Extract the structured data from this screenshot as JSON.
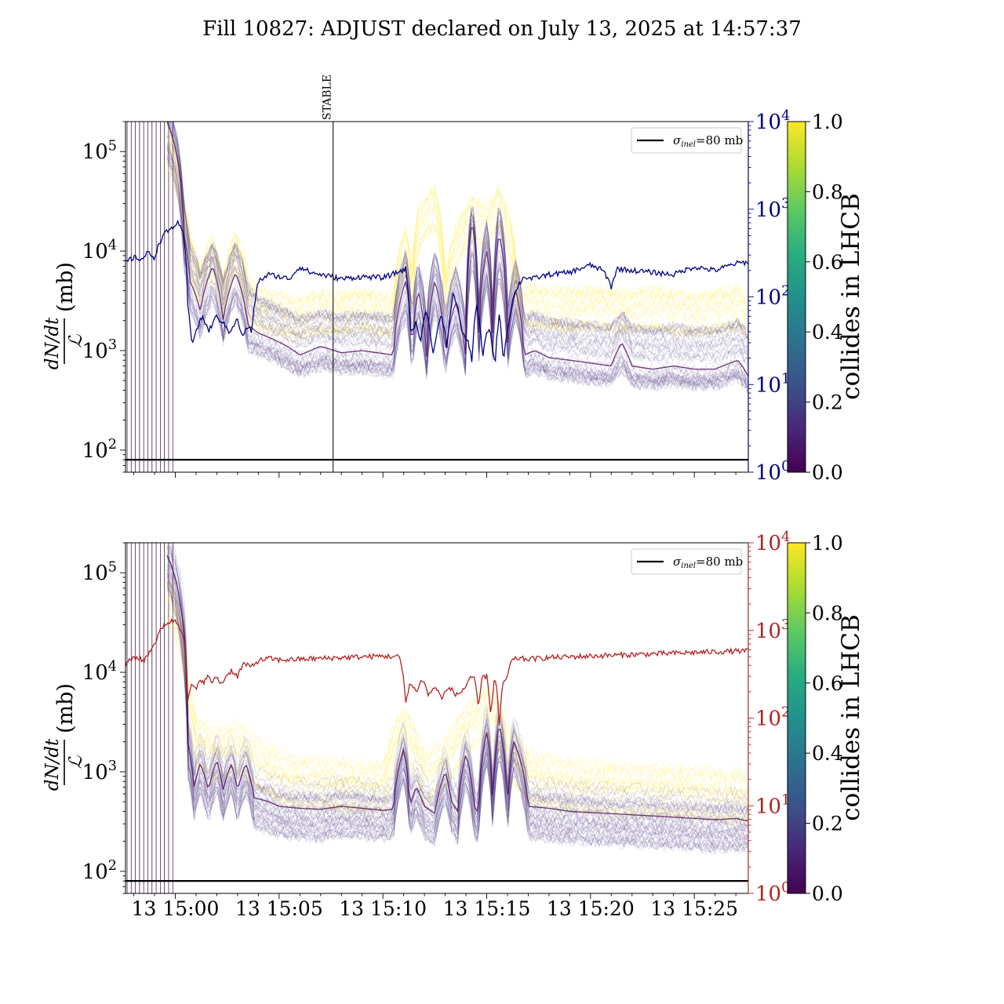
{
  "title": "Fill 10827: ADJUST declared on July 13, 2025 at 14:57:37",
  "colors": {
    "top_right_axis": "#00007f",
    "bottom_right_axis": "#b22222",
    "cmap_low": "#440154",
    "cmap_high": "#fde725",
    "line_black": "#000000"
  },
  "chart_data": [
    {
      "type": "line",
      "panel": "top",
      "ylabel_left": "dN/dt / L (mb)",
      "ylabel_main": "dN/dt",
      "ylabel_den": "ℒ",
      "ylabel_unit": "(mb)",
      "yscale_left": "log",
      "ylim_left": [
        60,
        200000
      ],
      "yticks_left": [
        {
          "v": 100,
          "e": "2"
        },
        {
          "v": 1000,
          "e": "3"
        },
        {
          "v": 10000,
          "e": "4"
        },
        {
          "v": 100000,
          "e": "5"
        }
      ],
      "yscale_right": "log",
      "ylim_right": [
        1,
        10000
      ],
      "yticks_right": [
        {
          "v": 1,
          "e": "0"
        },
        {
          "v": 10,
          "e": "1"
        },
        {
          "v": 100,
          "e": "2"
        },
        {
          "v": 1000,
          "e": "3"
        },
        {
          "v": 10000,
          "e": "4"
        }
      ],
      "xlim_minutes": [
        -2.4,
        27.6
      ],
      "show_xticklabels": false,
      "legend": {
        "label_sym": "σ",
        "label_sub": "inel",
        "label_rest": "=80 mb",
        "placement": "upper right"
      },
      "reference_line_mb": 80,
      "annotation": {
        "label": "STABLE",
        "x_minutes": 7.6
      },
      "series_left": {
        "name": "per-bunch dN/dt / L",
        "x_minutes": [
          -0.4,
          0.4,
          0.7,
          1.2,
          1.8,
          2.3,
          2.9,
          3.5,
          4,
          4.7,
          5.4,
          6,
          7,
          8,
          9,
          10.5,
          11.1,
          11.4,
          11.7,
          12.1,
          12.5,
          13,
          13.5,
          14,
          14.3,
          14.6,
          15,
          15.3,
          15.6,
          16,
          16.4,
          16.8,
          17.3,
          18,
          19,
          20,
          21,
          21.5,
          22,
          23,
          24,
          25,
          26,
          27.1,
          27.6
        ],
        "median": [
          200000,
          15000,
          5000,
          2500,
          7000,
          2000,
          6000,
          1800,
          1500,
          1300,
          1100,
          900,
          1100,
          950,
          1000,
          900,
          5000,
          900,
          4000,
          800,
          5000,
          900,
          3000,
          800,
          20000,
          900,
          10000,
          900,
          15000,
          1000,
          4000,
          900,
          1000,
          850,
          800,
          750,
          700,
          1200,
          700,
          650,
          700,
          650,
          650,
          800,
          550
        ],
        "lower_band": [
          80000,
          7000,
          2500,
          1300,
          3000,
          1100,
          3000,
          1000,
          900,
          800,
          650,
          550,
          650,
          600,
          600,
          550,
          2000,
          550,
          1800,
          500,
          2200,
          550,
          1500,
          500,
          7000,
          550,
          4000,
          550,
          5000,
          600,
          2000,
          550,
          600,
          520,
          500,
          470,
          450,
          600,
          450,
          420,
          450,
          420,
          420,
          500,
          380
        ],
        "upper_band": [
          300000,
          30000,
          12000,
          6000,
          12000,
          5000,
          12000,
          4500,
          3500,
          3000,
          2500,
          2200,
          2500,
          2300,
          2400,
          2200,
          10000,
          2200,
          8000,
          2000,
          10000,
          2200,
          7000,
          2000,
          30000,
          2200,
          20000,
          2200,
          30000,
          2500,
          8000,
          2200,
          2400,
          2100,
          2000,
          1900,
          1800,
          2500,
          1800,
          1700,
          1800,
          1700,
          1700,
          2000,
          1500
        ]
      },
      "series_colliding": {
        "name": "colliding bunches",
        "x_minutes": [
          -0.4,
          0.4,
          0.7,
          1.2,
          1.8,
          2.3,
          2.9,
          3.5,
          4,
          4.7,
          5.4,
          6,
          7,
          8,
          9,
          10.5,
          11.1,
          11.4,
          11.7,
          12.5,
          13,
          14.3,
          15,
          15.6,
          16.5,
          17,
          18,
          19,
          20,
          21,
          22,
          23,
          24,
          25,
          26,
          27.1,
          27.6
        ],
        "median": [
          100000,
          20000,
          8000,
          4000,
          8000,
          3000,
          9000,
          3000,
          2500,
          2200,
          2000,
          1900,
          2200,
          2100,
          2300,
          2000,
          10000,
          3000,
          15000,
          25000,
          3000,
          20000,
          15000,
          25000,
          3000,
          2500,
          2400,
          2300,
          2400,
          2300,
          2200,
          2400,
          2200,
          2100,
          2200,
          2500,
          1800
        ]
      },
      "series_right": {
        "name": "right-axis trace",
        "color": "#00007f",
        "x_minutes": [
          -2.4,
          -2,
          -1.6,
          -1.3,
          -1,
          -0.6,
          -0.2,
          0.1,
          0.4,
          0.6,
          0.7,
          0.8,
          1,
          1.3,
          1.6,
          2,
          2.3,
          2.6,
          3,
          3.2,
          3.5,
          3.7,
          4,
          4.5,
          5,
          5.5,
          6,
          6.5,
          7,
          8,
          9,
          10,
          10.7,
          11.1,
          11.3,
          11.6,
          11.8,
          12.1,
          12.4,
          12.8,
          13.1,
          13.4,
          13.8,
          14.1,
          14.3,
          14.5,
          14.8,
          15.1,
          15.4,
          15.6,
          15.8,
          16,
          16.4,
          16.8,
          17.2,
          18,
          19,
          20,
          20.6,
          21,
          21.3,
          22,
          23,
          24,
          25,
          26,
          27,
          27.6
        ],
        "values": [
          250,
          280,
          270,
          320,
          280,
          500,
          600,
          700,
          500,
          80,
          50,
          30,
          40,
          60,
          40,
          60,
          50,
          40,
          55,
          35,
          45,
          40,
          150,
          180,
          170,
          160,
          220,
          190,
          180,
          160,
          170,
          165,
          190,
          210,
          40,
          50,
          30,
          70,
          20,
          60,
          25,
          110,
          40,
          30,
          18,
          80,
          20,
          45,
          15,
          60,
          18,
          40,
          120,
          170,
          160,
          180,
          190,
          230,
          200,
          130,
          210,
          200,
          190,
          180,
          220,
          200,
          240,
          250
        ]
      }
    },
    {
      "type": "line",
      "panel": "bottom",
      "ylabel_left": "dN/dt / L (mb)",
      "ylabel_main": "dN/dt",
      "ylabel_den": "ℒ",
      "ylabel_unit": "(mb)",
      "yscale_left": "log",
      "ylim_left": [
        60,
        200000
      ],
      "yticks_left": [
        {
          "v": 100,
          "e": "2"
        },
        {
          "v": 1000,
          "e": "3"
        },
        {
          "v": 10000,
          "e": "4"
        },
        {
          "v": 100000,
          "e": "5"
        }
      ],
      "yscale_right": "log",
      "ylim_right": [
        1,
        10000
      ],
      "yticks_right": [
        {
          "v": 1,
          "e": "0"
        },
        {
          "v": 10,
          "e": "1"
        },
        {
          "v": 100,
          "e": "2"
        },
        {
          "v": 1000,
          "e": "3"
        },
        {
          "v": 10000,
          "e": "4"
        }
      ],
      "xlim_minutes": [
        -2.4,
        27.6
      ],
      "xticks": [
        {
          "v": 0,
          "label": "13 15:00"
        },
        {
          "v": 5,
          "label": "13 15:05"
        },
        {
          "v": 10,
          "label": "13 15:10"
        },
        {
          "v": 15,
          "label": "13 15:15"
        },
        {
          "v": 20,
          "label": "13 15:20"
        },
        {
          "v": 25,
          "label": "13 15:25"
        }
      ],
      "legend": {
        "label_sym": "σ",
        "label_sub": "inel",
        "label_rest": "=80 mb",
        "placement": "upper right"
      },
      "reference_line_mb": 80,
      "series_left": {
        "name": "per-bunch dN/dt / L",
        "x_minutes": [
          -2.4,
          -0.4,
          0.3,
          0.6,
          0.9,
          1.2,
          1.6,
          2,
          2.3,
          2.7,
          3,
          3.4,
          3.8,
          4.5,
          5,
          6,
          7,
          8,
          9,
          10,
          10.5,
          11,
          11.3,
          11.6,
          12,
          12.5,
          13,
          13.3,
          13.6,
          14,
          14.4,
          14.6,
          15,
          15.3,
          15.6,
          16,
          16.3,
          17,
          18,
          19,
          20,
          21,
          22,
          23,
          24,
          25,
          26,
          27,
          27.6
        ],
        "median": [
          200000,
          150000,
          40000,
          2000,
          700,
          1200,
          650,
          1300,
          650,
          1200,
          650,
          1200,
          550,
          500,
          450,
          430,
          420,
          450,
          430,
          410,
          420,
          1700,
          450,
          700,
          450,
          380,
          1000,
          500,
          400,
          1500,
          450,
          380,
          2500,
          450,
          3000,
          450,
          2000,
          450,
          430,
          400,
          390,
          380,
          370,
          360,
          350,
          340,
          330,
          340,
          320
        ],
        "lower_band": [
          100000,
          70000,
          15000,
          900,
          350,
          600,
          320,
          650,
          320,
          600,
          320,
          600,
          280,
          250,
          230,
          220,
          210,
          230,
          220,
          210,
          220,
          800,
          220,
          350,
          220,
          190,
          500,
          250,
          200,
          700,
          220,
          190,
          1200,
          220,
          1400,
          220,
          1000,
          220,
          210,
          200,
          195,
          190,
          185,
          180,
          175,
          170,
          165,
          170,
          160
        ],
        "upper_band": [
          300000,
          300000,
          90000,
          4500,
          1500,
          2500,
          1400,
          2700,
          1400,
          2500,
          1400,
          2500,
          1100,
          1000,
          900,
          850,
          850,
          900,
          860,
          820,
          840,
          3500,
          900,
          1400,
          900,
          760,
          2000,
          1000,
          800,
          3000,
          900,
          760,
          5000,
          900,
          6000,
          900,
          4000,
          900,
          860,
          800,
          780,
          760,
          740,
          720,
          700,
          680,
          660,
          680,
          640
        ]
      },
      "series_colliding": {
        "name": "colliding bunches",
        "x_minutes": [
          -0.4,
          0.6,
          1,
          2,
          3,
          4,
          5,
          6,
          8,
          10,
          11,
          12,
          13,
          14,
          15,
          15.6,
          16,
          17,
          18,
          20,
          22,
          24,
          26,
          27.6
        ],
        "median": [
          60000,
          5000,
          2000,
          1500,
          1800,
          1200,
          900,
          800,
          750,
          700,
          2500,
          900,
          1200,
          2500,
          4000,
          3000,
          1500,
          900,
          800,
          700,
          680,
          650,
          600,
          550
        ]
      },
      "series_right": {
        "name": "right-axis trace",
        "color": "#b22222",
        "x_minutes": [
          -2.4,
          -2,
          -1.5,
          -1,
          -0.5,
          0,
          0.4,
          0.6,
          0.8,
          1,
          1.2,
          1.4,
          1.6,
          1.8,
          2,
          2.2,
          2.4,
          2.7,
          3,
          3.3,
          3.6,
          4,
          4.5,
          5,
          6,
          7,
          8,
          9,
          10,
          10.8,
          11.1,
          11.3,
          11.6,
          11.9,
          12.2,
          12.5,
          12.8,
          13.2,
          13.6,
          14,
          14.2,
          14.4,
          14.6,
          14.8,
          15,
          15.2,
          15.4,
          15.6,
          15.8,
          16,
          16.2,
          16.5,
          17,
          18,
          19,
          20,
          21,
          22,
          23,
          24,
          25,
          26,
          27,
          27.6
        ],
        "values": [
          400,
          500,
          450,
          700,
          1200,
          1300,
          900,
          150,
          250,
          200,
          280,
          260,
          300,
          250,
          300,
          240,
          290,
          350,
          300,
          420,
          380,
          450,
          480,
          460,
          470,
          480,
          490,
          500,
          510,
          500,
          150,
          250,
          200,
          280,
          180,
          230,
          170,
          220,
          180,
          230,
          300,
          280,
          120,
          300,
          300,
          100,
          300,
          80,
          250,
          300,
          450,
          480,
          470,
          490,
          500,
          510,
          520,
          530,
          540,
          550,
          560,
          570,
          580,
          580
        ]
      }
    }
  ],
  "colorbar": {
    "label": "collides in LHCB",
    "ticks": [
      "0.0",
      "0.2",
      "0.4",
      "0.6",
      "0.8",
      "1.0"
    ]
  }
}
